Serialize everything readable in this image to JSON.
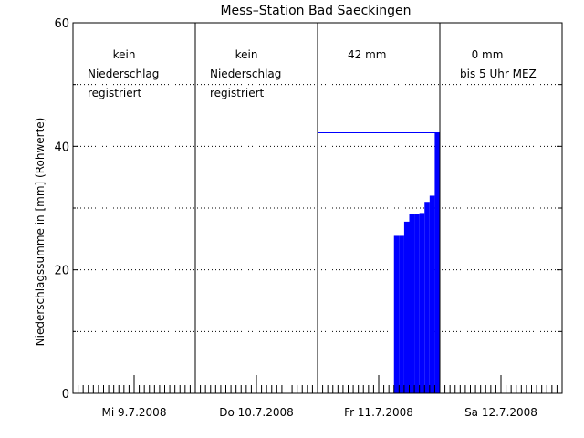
{
  "chart_data": {
    "type": "bar",
    "title": "Mess–Station Bad Saeckingen",
    "xlabel": "",
    "ylabel": "Niederschlagssumme in [mm] (Rohwerte)",
    "ylim": [
      0,
      60
    ],
    "y_ticks": [
      "0",
      "20",
      "40",
      "60"
    ],
    "y_minor_ticks": [
      10,
      30,
      50
    ],
    "grid": "dotted horizontal",
    "x_range_hours": [
      0,
      96
    ],
    "day_labels": [
      "Mi 9.7.2008",
      "Do 10.7.2008",
      "Fr 11.7.2008",
      "Sa 12.7.2008"
    ],
    "annotations": [
      {
        "day": 0,
        "lines": [
          "kein",
          "Niederschlag",
          "registriert"
        ]
      },
      {
        "day": 1,
        "lines": [
          "kein",
          "Niederschlag",
          "registriert"
        ]
      },
      {
        "day": 2,
        "lines": [
          "42 mm"
        ]
      },
      {
        "day": 3,
        "lines": [
          "0 mm",
          "bis 5 Uhr MEZ"
        ]
      }
    ],
    "series": [
      {
        "values": [
          {
            "hour": 63,
            "value": 25.5
          },
          {
            "hour": 64,
            "value": 25.5
          },
          {
            "hour": 65,
            "value": 27.8
          },
          {
            "hour": 66,
            "value": 29.0
          },
          {
            "hour": 67,
            "value": 29.0
          },
          {
            "hour": 68,
            "value": 29.2
          },
          {
            "hour": 69,
            "value": 31.0
          },
          {
            "hour": 70,
            "value": 32.0
          },
          {
            "hour": 71,
            "value": 42.2
          }
        ]
      }
    ],
    "total_line": {
      "value": 42.2,
      "from_hour": 48,
      "to_hour": 72
    },
    "colors": {
      "bars": "#0000ff",
      "axes": "#000000"
    }
  }
}
